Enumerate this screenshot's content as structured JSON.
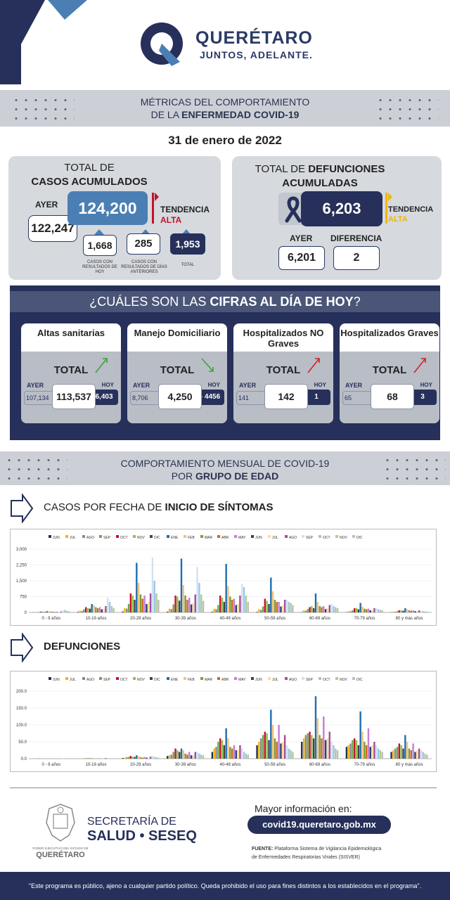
{
  "header": {
    "brand_name": "QUERÉTARO",
    "brand_slogan": "JUNTOS, ADELANTE."
  },
  "banner": {
    "line1": "MÉTRICAS DEL COMPORTAMIENTO",
    "line2_a": "DE LA ",
    "line2_b": "ENFERMEDAD COVID-19"
  },
  "date": "31 de enero de 2022",
  "cases": {
    "title1": "TOTAL DE",
    "title2": "CASOS ACUMULADOS",
    "ayer_label": "AYER",
    "ayer_value": "122,247",
    "total_value": "124,200",
    "tendencia_label": "TENDENCIA",
    "tendencia_value": "ALTA",
    "hoy_value": "1,668",
    "hoy_label": "CASOS CON RESULTADOS DE HOY",
    "prev_value": "285",
    "prev_label": "CASOS CON RESULTADOS DE DÍAS ANTERIORES",
    "sum_value": "1,953",
    "sum_label": "TOTAL"
  },
  "deaths": {
    "title_a": "TOTAL DE ",
    "title_b": "DEFUNCIONES",
    "title2": "ACUMULADAS",
    "total_value": "6,203",
    "tendencia_label": "TENDENCIA",
    "tendencia_value": "ALTA",
    "ayer_label": "AYER",
    "ayer_value": "6,201",
    "diff_label": "DIFERENCIA",
    "diff_value": "2"
  },
  "today": {
    "heading_a": "¿CUÁLES SON LAS ",
    "heading_b": "CIFRAS AL DÍA DE HOY",
    "heading_c": "?",
    "tiles": [
      {
        "title": "Altas sanitarias",
        "total_label": "TOTAL",
        "ayer_label": "AYER",
        "hoy_label": "HOY",
        "ayer": "107,134",
        "main": "113,537",
        "hoy": "6,403",
        "trend": "up-green"
      },
      {
        "title": "Manejo Domiciliario",
        "total_label": "TOTAL",
        "ayer_label": "AYER",
        "hoy_label": "HOY",
        "ayer": "8,706",
        "main": "4,250",
        "hoy": "- 4456",
        "trend": "down-green"
      },
      {
        "title": "Hospitalizados NO Graves",
        "total_label": "TOTAL",
        "ayer_label": "AYER",
        "hoy_label": "HOY",
        "ayer": "141",
        "main": "142",
        "hoy": "1",
        "trend": "up-red"
      },
      {
        "title": "Hospitalizados Graves",
        "total_label": "TOTAL",
        "ayer_label": "AYER",
        "hoy_label": "HOY",
        "ayer": "65",
        "main": "68",
        "hoy": "3",
        "trend": "up-red"
      }
    ]
  },
  "monthly": {
    "line1": "COMPORTAMIENTO MENSUAL DE COVID-19",
    "line2_a": "POR ",
    "line2_b": "GRUPO DE EDAD"
  },
  "section_cases": {
    "a": "CASOS POR FECHA DE ",
    "b": "INICIO  DE SÍNTOMAS"
  },
  "section_deaths": "DEFUNCIONES",
  "colors": {
    "navy": "#26305a",
    "accent_red": "#c0142b",
    "accent_yellow": "#f2b600"
  },
  "chart_data": [
    {
      "type": "bar",
      "series_names": [
        "JUN",
        "JUL",
        "AGO",
        "SEP",
        "OCT",
        "NOV",
        "DIC",
        "ENE",
        "FEB",
        "MAR",
        "ABR",
        "MAY",
        "JUN",
        "JUL",
        "AGO",
        "SEP",
        "OCT",
        "NOV",
        "DIC"
      ],
      "series_colors": [
        "#26305a",
        "#f2b600",
        "#8a8a8a",
        "#6aa84f",
        "#c8102e",
        "#8bc34a",
        "#444444",
        "#1f6fb2",
        "#f4c27a",
        "#7a9e3a",
        "#d2691e",
        "#c77dd8",
        "#264478",
        "#ffe08a",
        "#a64d9e",
        "#cfe2f3",
        "#9fc5e8",
        "#a9d18e",
        "#bdbdbd"
      ],
      "categories": [
        "0 - 9 años",
        "10-19 años",
        "20-29 años",
        "30-39 años",
        "40-49 años",
        "50-59 años",
        "60-69 años",
        "70-79 años",
        "80 y más años"
      ],
      "ylim": [
        0,
        3000
      ],
      "yticks": [
        "0",
        "750",
        "1,500",
        "2,250",
        "3,000"
      ],
      "values": [
        [
          5,
          10,
          8,
          20,
          40,
          30,
          25,
          60,
          55,
          40,
          35,
          30,
          20,
          30,
          40,
          100,
          120,
          70,
          60
        ],
        [
          25,
          80,
          70,
          150,
          250,
          200,
          180,
          400,
          350,
          250,
          200,
          250,
          150,
          180,
          300,
          700,
          500,
          300,
          200
        ],
        [
          40,
          200,
          180,
          400,
          900,
          800,
          600,
          2350,
          1400,
          850,
          650,
          800,
          400,
          500,
          900,
          2600,
          1500,
          900,
          600
        ],
        [
          35,
          180,
          160,
          380,
          800,
          750,
          560,
          2550,
          1300,
          800,
          600,
          700,
          380,
          450,
          850,
          2150,
          1400,
          850,
          550
        ],
        [
          30,
          170,
          150,
          350,
          800,
          700,
          500,
          2300,
          1250,
          750,
          600,
          650,
          350,
          400,
          800,
          1350,
          1200,
          800,
          500
        ],
        [
          25,
          150,
          120,
          280,
          650,
          550,
          400,
          1650,
          1000,
          600,
          500,
          500,
          280,
          330,
          600,
          600,
          500,
          450,
          350
        ],
        [
          15,
          100,
          80,
          160,
          250,
          300,
          200,
          900,
          500,
          300,
          250,
          300,
          160,
          200,
          350,
          400,
          300,
          250,
          200
        ],
        [
          10,
          60,
          50,
          100,
          200,
          200,
          150,
          450,
          280,
          180,
          150,
          180,
          100,
          120,
          200,
          200,
          150,
          120,
          100
        ],
        [
          8,
          40,
          30,
          60,
          100,
          100,
          80,
          200,
          150,
          100,
          80,
          100,
          60,
          70,
          100,
          80,
          60,
          50,
          40
        ]
      ]
    },
    {
      "type": "bar",
      "series_names": [
        "JUN",
        "JUL",
        "AGO",
        "SEP",
        "OCT",
        "NOV",
        "DIC",
        "ENE",
        "FEB",
        "MAR",
        "ABR",
        "MAY",
        "JUN",
        "JUL",
        "AGO",
        "SEP",
        "OCT",
        "NOV",
        "DIC"
      ],
      "series_colors": [
        "#26305a",
        "#f2b600",
        "#8a8a8a",
        "#6aa84f",
        "#c8102e",
        "#8bc34a",
        "#444444",
        "#1f6fb2",
        "#f4c27a",
        "#7a9e3a",
        "#d2691e",
        "#c77dd8",
        "#264478",
        "#ffe08a",
        "#a64d9e",
        "#cfe2f3",
        "#9fc5e8",
        "#a9d18e",
        "#bdbdbd"
      ],
      "categories": [
        "0 - 9 años",
        "10-19 años",
        "20-29 años",
        "30-39 años",
        "40-49 años",
        "50-59 años",
        "60-69 años",
        "70-79 años",
        "80 y más años"
      ],
      "ylim": [
        0,
        200
      ],
      "yticks": [
        "0.0",
        "50.0",
        "100.0",
        "150.0",
        "200.0"
      ],
      "values": [
        [
          0,
          0,
          0,
          1,
          0,
          0,
          0,
          0,
          0,
          0,
          0,
          0,
          0,
          0,
          0,
          1,
          0,
          0,
          0
        ],
        [
          0,
          1,
          0,
          1,
          1,
          2,
          1,
          1,
          2,
          0,
          1,
          1,
          0,
          1,
          2,
          2,
          1,
          0,
          1
        ],
        [
          2,
          3,
          4,
          5,
          8,
          6,
          5,
          10,
          7,
          4,
          3,
          5,
          3,
          3,
          6,
          8,
          5,
          4,
          3
        ],
        [
          8,
          10,
          12,
          20,
          30,
          25,
          20,
          30,
          25,
          15,
          12,
          20,
          10,
          10,
          20,
          20,
          15,
          12,
          10
        ],
        [
          20,
          30,
          35,
          50,
          60,
          55,
          40,
          90,
          60,
          35,
          30,
          40,
          25,
          25,
          40,
          30,
          20,
          15,
          12
        ],
        [
          40,
          50,
          60,
          70,
          80,
          75,
          55,
          145,
          100,
          60,
          50,
          100,
          45,
          50,
          70,
          40,
          30,
          25,
          20
        ],
        [
          50,
          60,
          70,
          75,
          80,
          70,
          60,
          185,
          120,
          70,
          60,
          125,
          55,
          60,
          80,
          50,
          40,
          30,
          25
        ],
        [
          35,
          40,
          45,
          55,
          60,
          55,
          40,
          140,
          80,
          50,
          40,
          90,
          35,
          40,
          50,
          40,
          30,
          25,
          20
        ],
        [
          20,
          25,
          30,
          35,
          45,
          40,
          30,
          70,
          50,
          30,
          25,
          45,
          20,
          25,
          30,
          25,
          20,
          15,
          12
        ]
      ]
    }
  ],
  "footer_block": {
    "secretaria1": "SECRETARÍA DE",
    "secretaria2": "SALUD • SESEQ",
    "seal_text1": "PODER EJECUTIVO DEL ESTADO DE",
    "seal_text2": "QUERÉTARO",
    "more_info": "Mayor información en:",
    "url": "covid19.queretaro.gob.mx",
    "fuente_label": "FUENTE:",
    "fuente_text": " Plataforma Sistema  de Vigilancia Epidemiológica",
    "fuente_text2": "de Enfermedades Respiratorias Virales (SISVER)"
  },
  "disclaimer": "\"Este programa es público, ajeno a cualquier partido político. Queda prohibido el uso para fines distintos a los establecidos en el programa\"."
}
